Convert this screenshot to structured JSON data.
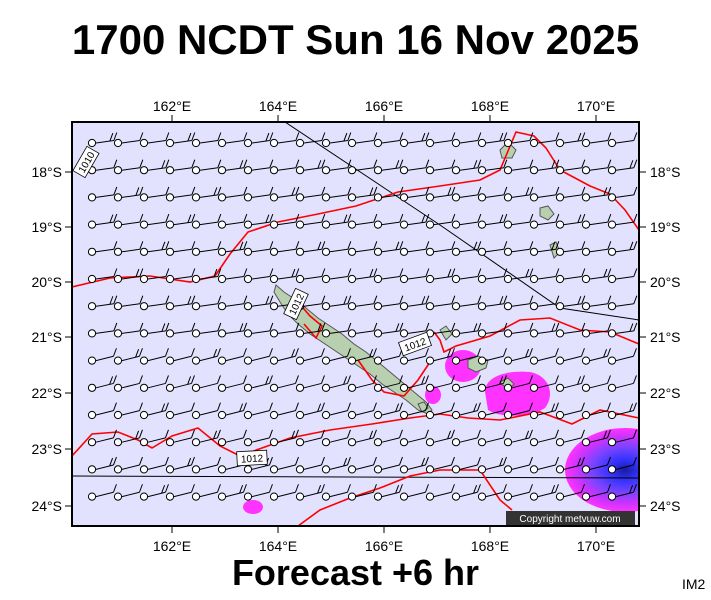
{
  "title": "1700 NCDT Sun 16 Nov 2025",
  "footer": "Forecast +6 hr",
  "map_code": "IM2",
  "copyright": "Copyright metvuw.com",
  "longitude_labels": [
    "162°E",
    "164°E",
    "166°E",
    "168°E",
    "170°E"
  ],
  "latitude_labels": [
    "18°S",
    "19°S",
    "20°S",
    "21°S",
    "22°S",
    "23°S",
    "24°S"
  ],
  "isobar_labels": [
    "1010",
    "1012",
    "1012",
    "1012"
  ],
  "colors": {
    "map_background": "#e2e2ff",
    "isobar_line": "#ff0000",
    "precip_light": "#ff33ff",
    "precip_core": "#3333ff",
    "land": "#b8d0b0"
  },
  "symbols": {
    "wind_barb": "wind-barb-icon",
    "station": "station-circle-icon"
  }
}
